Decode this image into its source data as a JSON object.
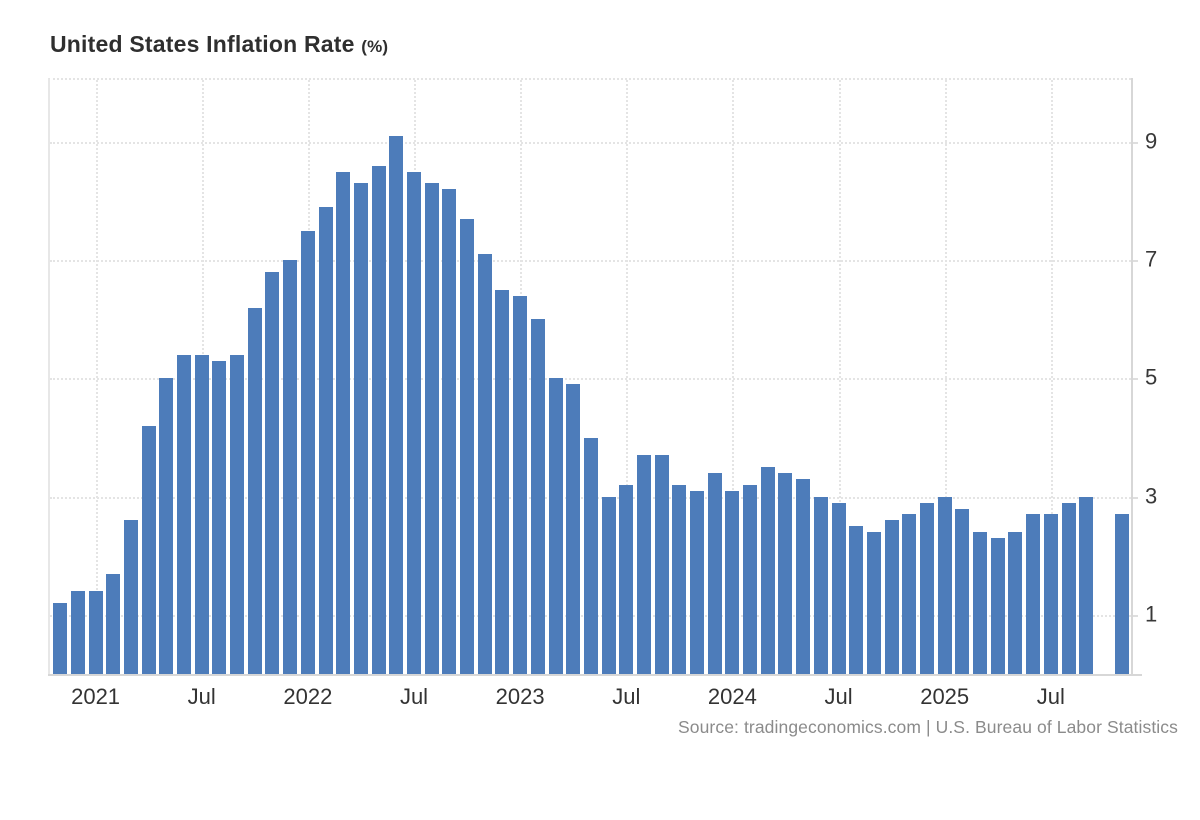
{
  "title": {
    "main": "United States Inflation Rate",
    "unit": "(%)"
  },
  "source": "Source: tradingeconomics.com | U.S. Bureau of Labor Statistics",
  "colors": {
    "bar": "#4d7cba",
    "grid": "#e4e4e4",
    "axis": "#d7d7d7",
    "text": "#333333",
    "source_text": "#8b8b8b"
  },
  "chart_data": {
    "type": "bar",
    "title": "United States Inflation Rate (%)",
    "xlabel": "",
    "ylabel": "",
    "ylim": [
      0,
      10.05
    ],
    "yticks": [
      1,
      3,
      5,
      7,
      9
    ],
    "grid": "dotted",
    "legend": "none",
    "x": [
      "Nov 2020",
      "Dec 2020",
      "Jan 2021",
      "Feb 2021",
      "Mar 2021",
      "Apr 2021",
      "May 2021",
      "Jun 2021",
      "Jul 2021",
      "Aug 2021",
      "Sep 2021",
      "Oct 2021",
      "Nov 2021",
      "Dec 2021",
      "Jan 2022",
      "Feb 2022",
      "Mar 2022",
      "Apr 2022",
      "May 2022",
      "Jun 2022",
      "Jul 2022",
      "Aug 2022",
      "Sep 2022",
      "Oct 2022",
      "Nov 2022",
      "Dec 2022",
      "Jan 2023",
      "Feb 2023",
      "Mar 2023",
      "Apr 2023",
      "May 2023",
      "Jun 2023",
      "Jul 2023",
      "Aug 2023",
      "Sep 2023",
      "Oct 2023",
      "Nov 2023",
      "Dec 2023",
      "Jan 2024",
      "Feb 2024",
      "Mar 2024",
      "Apr 2024",
      "May 2024",
      "Jun 2024",
      "Jul 2024",
      "Aug 2024",
      "Sep 2024",
      "Oct 2024",
      "Nov 2024",
      "Dec 2024",
      "Jan 2025",
      "Feb 2025",
      "Mar 2025",
      "Apr 2025",
      "May 2025",
      "Jun 2025",
      "Jul 2025",
      "Aug 2025",
      "Sep 2025",
      "Oct 2025",
      "Nov 2025"
    ],
    "values": [
      1.2,
      1.4,
      1.4,
      1.7,
      2.6,
      4.2,
      5.0,
      5.4,
      5.4,
      5.3,
      5.4,
      6.2,
      6.8,
      7.0,
      7.5,
      7.9,
      8.5,
      8.3,
      8.6,
      9.1,
      8.5,
      8.3,
      8.2,
      7.7,
      7.1,
      6.5,
      6.4,
      6.0,
      5.0,
      4.9,
      4.0,
      3.0,
      3.2,
      3.7,
      3.7,
      3.2,
      3.1,
      3.4,
      3.1,
      3.2,
      3.5,
      3.4,
      3.3,
      3.0,
      2.9,
      2.5,
      2.4,
      2.6,
      2.7,
      2.9,
      3.0,
      2.8,
      2.4,
      2.3,
      2.4,
      2.7,
      2.7,
      2.9,
      3.0,
      null,
      2.7
    ],
    "xticks": [
      {
        "index": 2,
        "label": "2021"
      },
      {
        "index": 8,
        "label": "Jul"
      },
      {
        "index": 14,
        "label": "2022"
      },
      {
        "index": 20,
        "label": "Jul"
      },
      {
        "index": 26,
        "label": "2023"
      },
      {
        "index": 32,
        "label": "Jul"
      },
      {
        "index": 38,
        "label": "2024"
      },
      {
        "index": 44,
        "label": "Jul"
      },
      {
        "index": 50,
        "label": "2025"
      },
      {
        "index": 56,
        "label": "Jul"
      }
    ]
  }
}
